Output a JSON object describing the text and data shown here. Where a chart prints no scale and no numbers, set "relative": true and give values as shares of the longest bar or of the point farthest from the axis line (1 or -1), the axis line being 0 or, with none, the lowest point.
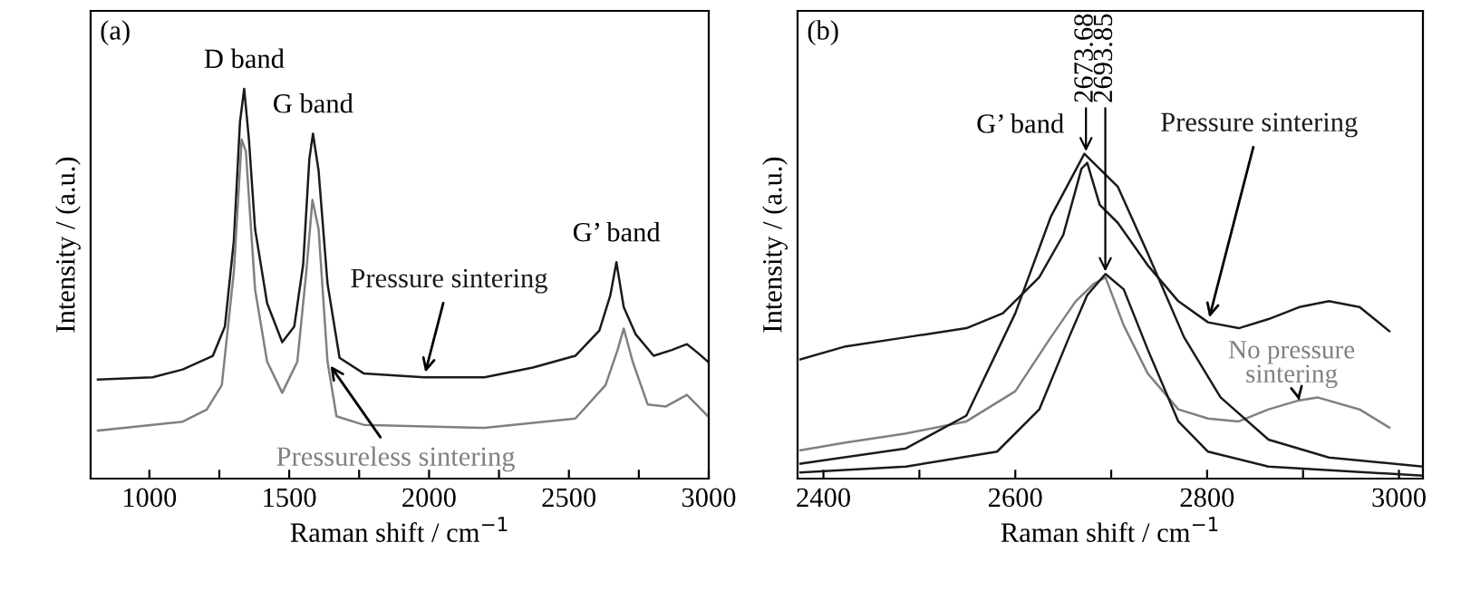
{
  "chart_data": [
    {
      "type": "line",
      "relative": true,
      "xlabel": "Raman shift / cm$^{−1}$",
      "ylabel": "Intensity / (a.u.)",
      "xlim": [
        790,
        3000
      ],
      "tick_labels": "x",
      "xticks": [
        1000,
        {
          "value": 1250,
          "label": null
        },
        1500,
        {
          "value": 1750,
          "label": null
        },
        2000,
        {
          "value": 2250,
          "label": null
        },
        2500,
        {
          "value": 2750,
          "label": null
        },
        3000
      ],
      "annotations": [
        "(a)",
        {
          "text": "D band",
          "x": 1339,
          "y": 1.0
        },
        {
          "text": "G band",
          "x": 1585,
          "y": 0.885
        },
        {
          "text": "G’ band",
          "x": 2670,
          "y": 0.555
        }
      ],
      "series": [
        {
          "name": "Pressure sintering",
          "color": "#1a1a1a",
          "x": [
            816,
            1011,
            1119,
            1227,
            1270,
            1302,
            1324,
            1339,
            1356,
            1378,
            1421,
            1475,
            1518,
            1550,
            1572,
            1585,
            1605,
            1637,
            1680,
            1766,
            1982,
            2198,
            2371,
            2523,
            2609,
            2648,
            2670,
            2696,
            2739,
            2803,
            2868,
            2922,
            2965,
            2997
          ],
          "values": [
            0.254,
            0.26,
            0.28,
            0.315,
            0.39,
            0.61,
            0.915,
            1.0,
            0.87,
            0.64,
            0.45,
            0.35,
            0.39,
            0.55,
            0.82,
            0.885,
            0.79,
            0.5,
            0.31,
            0.27,
            0.26,
            0.26,
            0.285,
            0.315,
            0.38,
            0.47,
            0.555,
            0.44,
            0.37,
            0.315,
            0.33,
            0.345,
            0.32,
            0.3
          ]
        },
        {
          "name": "Pressureless sintering",
          "color": "#808080",
          "x": [
            816,
            1119,
            1205,
            1259,
            1302,
            1330,
            1345,
            1378,
            1421,
            1475,
            1529,
            1561,
            1583,
            1605,
            1637,
            1669,
            1766,
            2198,
            2523,
            2631,
            2674,
            2696,
            2728,
            2782,
            2847,
            2922,
            2997
          ],
          "values": [
            0.123,
            0.146,
            0.177,
            0.24,
            0.53,
            0.87,
            0.84,
            0.485,
            0.3,
            0.22,
            0.3,
            0.53,
            0.715,
            0.64,
            0.3,
            0.16,
            0.138,
            0.13,
            0.154,
            0.24,
            0.33,
            0.385,
            0.3,
            0.19,
            0.185,
            0.215,
            0.16
          ]
        }
      ]
    },
    {
      "type": "line",
      "relative": true,
      "xlabel": "Raman shift / cm$^{−1}$",
      "ylabel": "Intensity / (a.u.)",
      "xlim": [
        2373,
        3025
      ],
      "tick_labels": "x",
      "xticks": [
        2400,
        {
          "value": 2500,
          "label": null
        },
        2600,
        {
          "value": 2700,
          "label": null
        },
        2800,
        {
          "value": 2900,
          "label": null
        },
        3000
      ],
      "annotations": [
        "(b)",
        {
          "text": "G’ band",
          "x": 2672,
          "y": 1.0
        },
        {
          "text": "2673.68",
          "x": 2673.68,
          "y": 1.0
        },
        {
          "text": "2693.85",
          "x": 2693.85,
          "y": 0.63
        }
      ],
      "series": [
        {
          "name": "Pressure sintering",
          "color": "#1a1a1a",
          "x": [
            2376,
            2423,
            2486,
            2549,
            2587,
            2625,
            2650,
            2669,
            2675,
            2688,
            2707,
            2738,
            2770,
            2801,
            2833,
            2864,
            2896,
            2927,
            2959,
            2990
          ],
          "values": [
            0.367,
            0.407,
            0.435,
            0.463,
            0.509,
            0.62,
            0.75,
            0.954,
            0.972,
            0.843,
            0.787,
            0.657,
            0.546,
            0.481,
            0.463,
            0.491,
            0.528,
            0.546,
            0.528,
            0.454
          ]
        },
        {
          "name": "No pressure sintering",
          "color": "#808080",
          "x": [
            2376,
            2423,
            2486,
            2549,
            2600,
            2637,
            2663,
            2682,
            2694,
            2713,
            2738,
            2770,
            2801,
            2833,
            2864,
            2896,
            2915,
            2959,
            2990
          ],
          "values": [
            0.087,
            0.111,
            0.139,
            0.176,
            0.269,
            0.435,
            0.546,
            0.6,
            0.62,
            0.472,
            0.324,
            0.213,
            0.185,
            0.176,
            0.213,
            0.241,
            0.25,
            0.213,
            0.157
          ]
        },
        {
          "color": "#1a1a1a",
          "x": [
            2376,
            2486,
            2549,
            2600,
            2637,
            2672,
            2707,
            2738,
            2776,
            2814,
            2864,
            2927,
            3025
          ],
          "values": [
            0.046,
            0.093,
            0.194,
            0.509,
            0.806,
            1.0,
            0.898,
            0.694,
            0.435,
            0.25,
            0.12,
            0.065,
            0.037
          ]
        },
        {
          "color": "#1a1a1a",
          "x": [
            2376,
            2486,
            2581,
            2625,
            2656,
            2675,
            2694,
            2713,
            2738,
            2770,
            2801,
            2864,
            3025
          ],
          "values": [
            0.019,
            0.037,
            0.083,
            0.213,
            0.435,
            0.565,
            0.63,
            0.583,
            0.398,
            0.176,
            0.083,
            0.037,
            0.009
          ]
        }
      ]
    }
  ]
}
